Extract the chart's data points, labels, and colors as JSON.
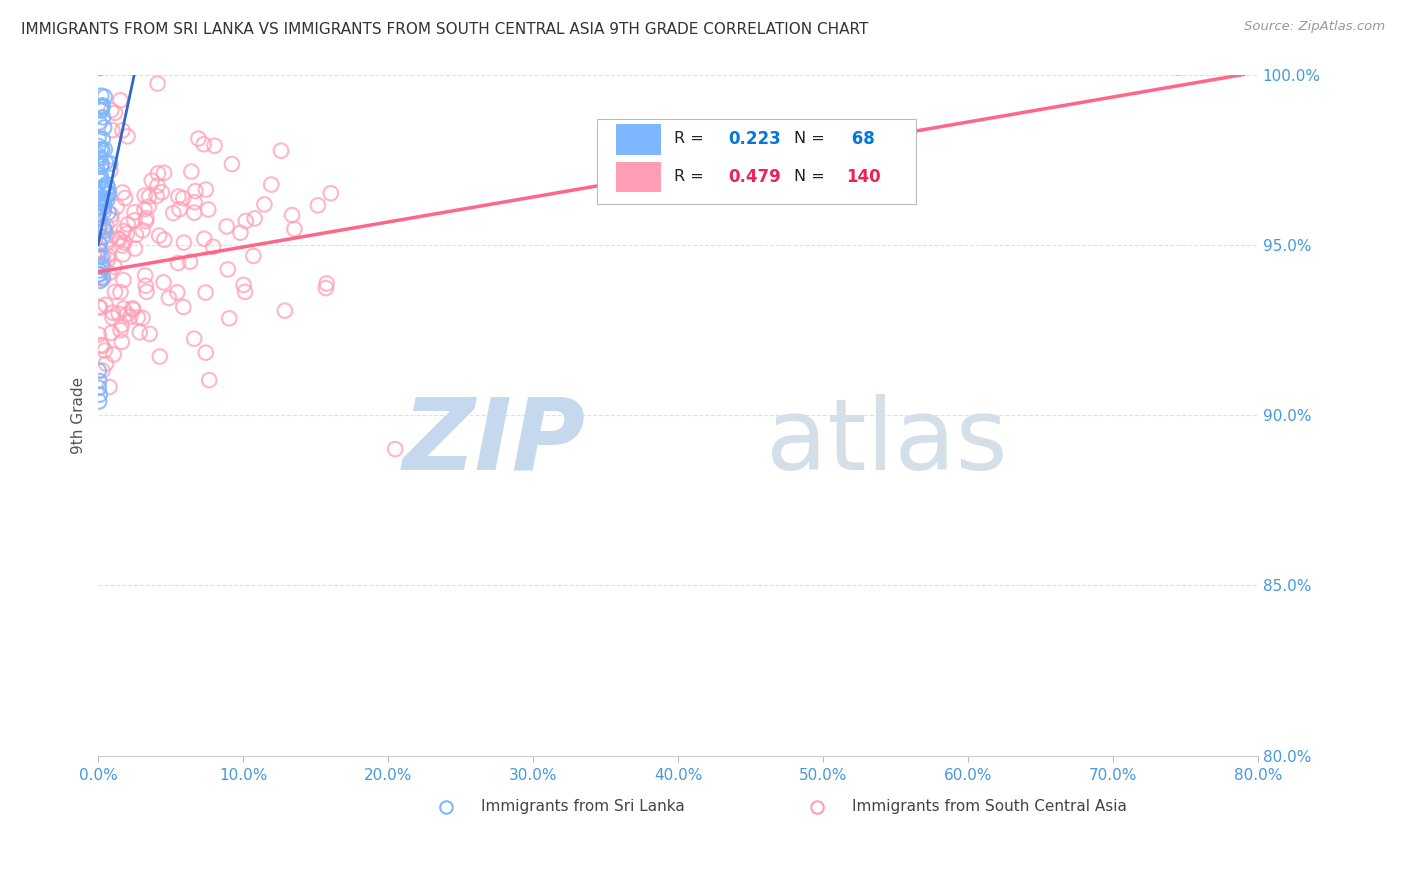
{
  "title": "IMMIGRANTS FROM SRI LANKA VS IMMIGRANTS FROM SOUTH CENTRAL ASIA 9TH GRADE CORRELATION CHART",
  "source": "Source: ZipAtlas.com",
  "ylabel": "9th Grade",
  "xlim": [
    0.0,
    80.0
  ],
  "ylim": [
    80.0,
    100.0
  ],
  "xticks": [
    0.0,
    10.0,
    20.0,
    30.0,
    40.0,
    50.0,
    60.0,
    70.0,
    80.0
  ],
  "yticks": [
    80.0,
    85.0,
    90.0,
    95.0,
    100.0
  ],
  "series1_label": "Immigrants from Sri Lanka",
  "series1_color": "#7EB6FF",
  "series1_line_color": "#3366CC",
  "series2_label": "Immigrants from South Central Asia",
  "series2_color": "#FF9EB5",
  "series2_line_color": "#FF6688",
  "title_color": "#333333",
  "axis_label_color": "#555555",
  "tick_color": "#4499DD",
  "grid_color": "#DDDDDD",
  "background_color": "#FFFFFF",
  "legend_R1_val": "0.223",
  "legend_N1_val": "68",
  "legend_R2_val": "0.479",
  "legend_N2_val": "140",
  "watermark_zip": "ZIP",
  "watermark_atlas": "atlas",
  "source_text": "Source: ZipAtlas.com"
}
